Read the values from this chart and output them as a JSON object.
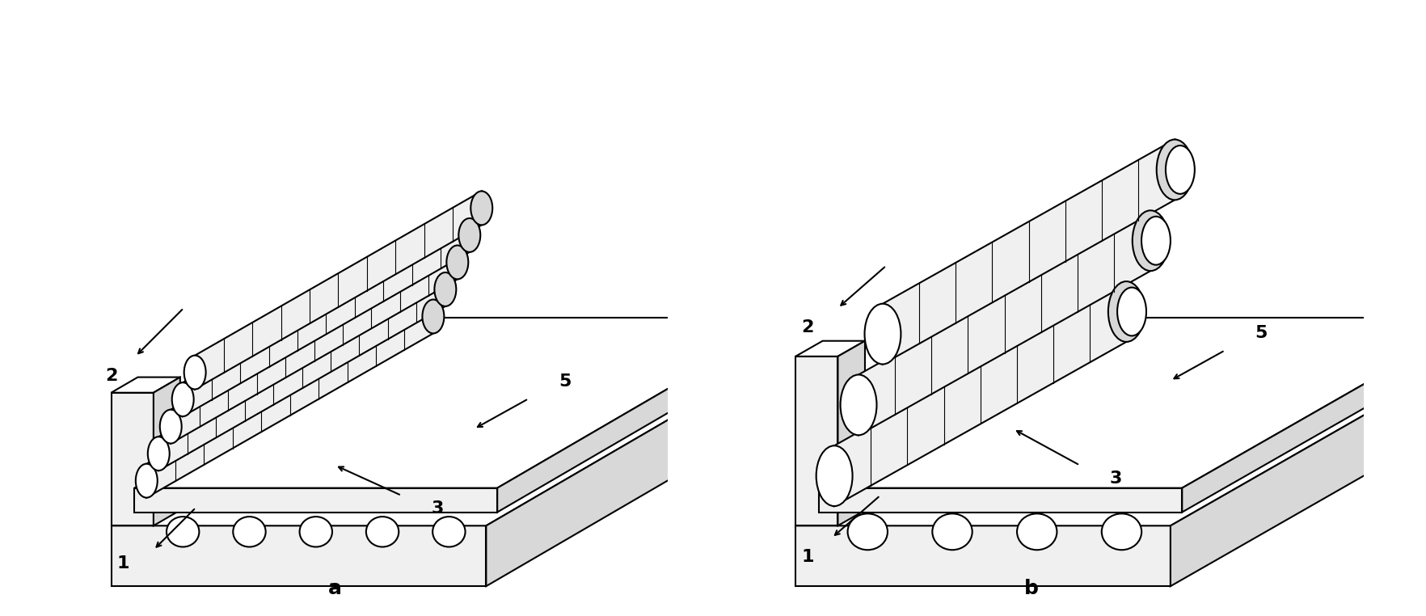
{
  "fig_width": 17.65,
  "fig_height": 7.62,
  "bg_color": "#ffffff",
  "line_color": "#000000",
  "face_color_light": "#f0f0f0",
  "face_color_medium": "#d8d8d8",
  "face_color_dark": "#b0b0b0",
  "face_color_white": "#ffffff",
  "label_a": "a",
  "label_b": "b",
  "labels": [
    "1",
    "2",
    "3",
    "5"
  ],
  "lw": 1.5,
  "title_fontsize": 18
}
